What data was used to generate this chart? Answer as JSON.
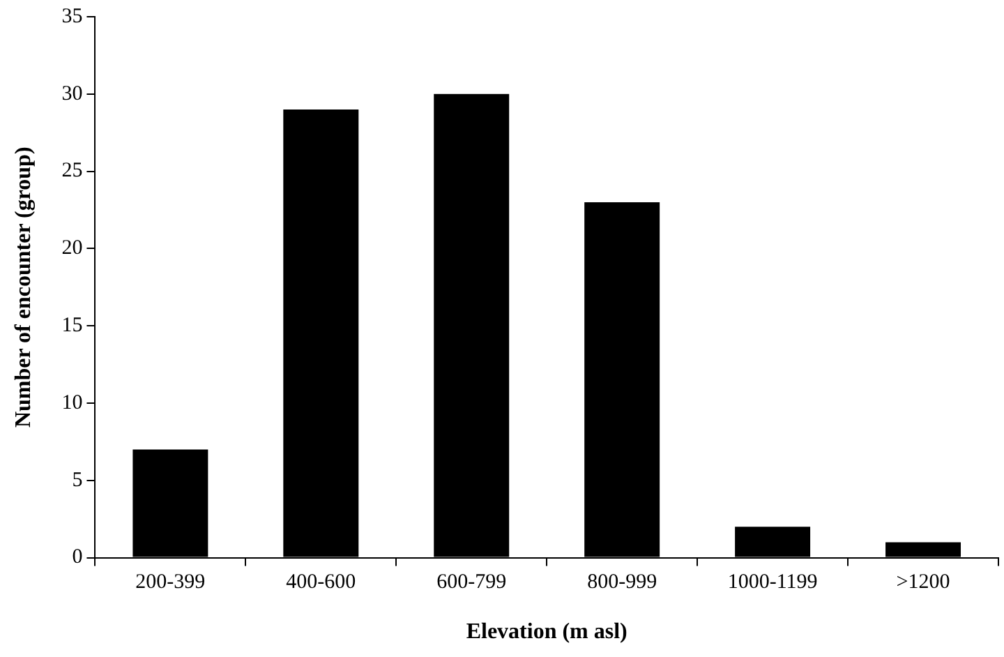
{
  "chart_data": {
    "type": "bar",
    "xlabel": "Elevation (m asl)",
    "ylabel": "Number of encounter (group)",
    "categories": [
      "200-399",
      "400-600",
      "600-799",
      "800-999",
      "1000-1199",
      ">1200"
    ],
    "values": [
      7,
      29,
      30,
      23,
      2,
      1
    ],
    "color": "#000000",
    "ylim": [
      0,
      35
    ],
    "yticks": [
      0,
      5,
      10,
      15,
      20,
      25,
      30,
      35
    ],
    "grid": false,
    "legend": false
  }
}
